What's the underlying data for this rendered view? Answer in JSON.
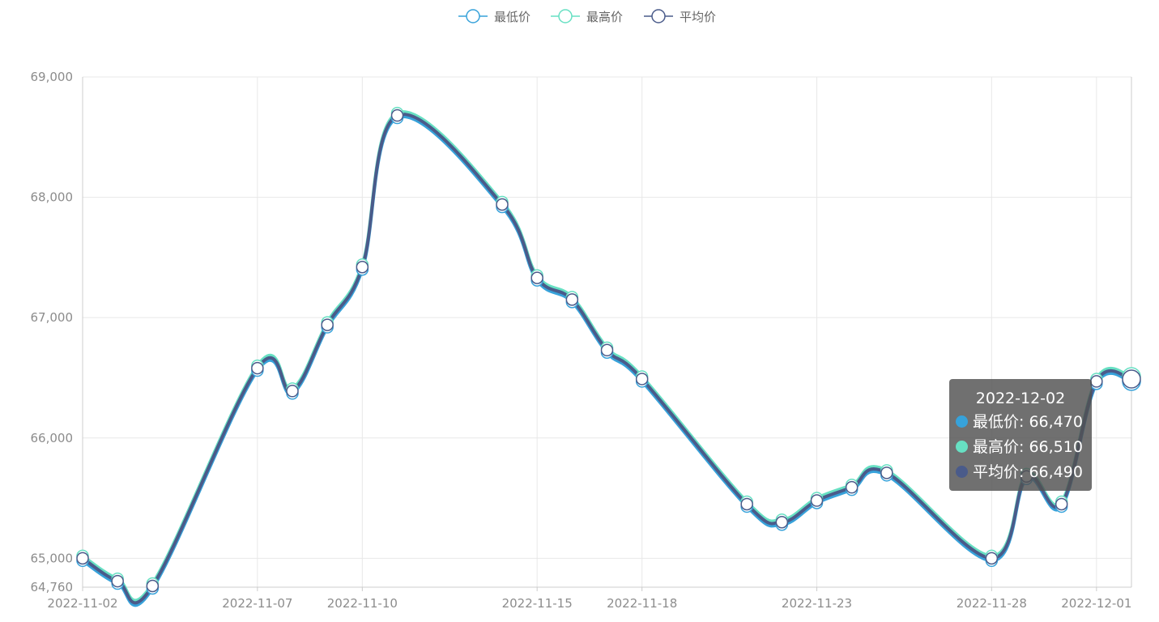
{
  "chart_data": {
    "type": "line",
    "smooth": true,
    "x": [
      "2022-11-02",
      "2022-11-03",
      "2022-11-04",
      "2022-11-07",
      "2022-11-08",
      "2022-11-09",
      "2022-11-10",
      "2022-11-11",
      "2022-11-14",
      "2022-11-15",
      "2022-11-16",
      "2022-11-17",
      "2022-11-18",
      "2022-11-21",
      "2022-11-22",
      "2022-11-23",
      "2022-11-24",
      "2022-11-25",
      "2022-11-28",
      "2022-11-29",
      "2022-11-30",
      "2022-12-01",
      "2022-12-02"
    ],
    "x_tick_labels": [
      "2022-11-02",
      "2022-11-07",
      "2022-11-10",
      "2022-11-15",
      "2022-11-18",
      "2022-11-23",
      "2022-11-28",
      "2022-12-01"
    ],
    "y_tick_labels": [
      "64,760",
      "65,000",
      "66,000",
      "67,000",
      "68,000",
      "69,000"
    ],
    "y_ticks": [
      64760,
      65000,
      66000,
      67000,
      68000,
      69000
    ],
    "ylim": [
      64760,
      69000
    ],
    "grid": true,
    "legend_position": "top-center",
    "series": [
      {
        "name": "最低价",
        "color": "#37a2da",
        "values": [
          64980,
          64790,
          64750,
          66560,
          66370,
          66920,
          67400,
          68660,
          67920,
          67310,
          67130,
          66710,
          66470,
          65430,
          65280,
          65460,
          65570,
          65690,
          64980,
          65660,
          65430,
          66450,
          66470
        ]
      },
      {
        "name": "最高价",
        "color": "#67e0c3",
        "values": [
          65020,
          64830,
          64790,
          66600,
          66410,
          66960,
          67440,
          68700,
          67960,
          67350,
          67170,
          66750,
          66510,
          65470,
          65320,
          65500,
          65610,
          65730,
          65020,
          65700,
          65470,
          66490,
          66510
        ]
      },
      {
        "name": "平均价",
        "color": "#4a5b8a",
        "values": [
          65000,
          64810,
          64770,
          66580,
          66390,
          66940,
          67420,
          68680,
          67940,
          67330,
          67150,
          66730,
          66490,
          65450,
          65300,
          65480,
          65590,
          65710,
          65000,
          65680,
          65450,
          66470,
          66490
        ]
      }
    ],
    "tooltip": {
      "title": "2022-12-02",
      "rows": [
        {
          "label": "最低价: 66,470",
          "color": "#37a2da"
        },
        {
          "label": "最高价: 66,510",
          "color": "#67e0c3"
        },
        {
          "label": "平均价: 66,490",
          "color": "#4a5b8a"
        }
      ]
    }
  }
}
